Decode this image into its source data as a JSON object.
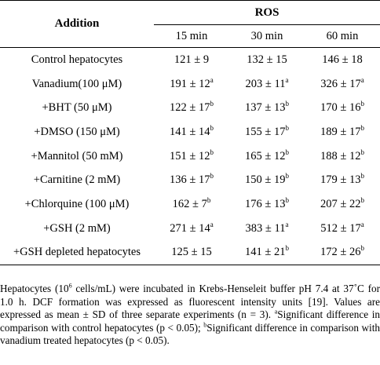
{
  "header": {
    "addition_label": "Addition",
    "ros_label": "ROS",
    "time_columns": [
      "15 min",
      "30 min",
      "60 min"
    ]
  },
  "rows": [
    {
      "addition": "Control hepatocytes",
      "values": [
        {
          "v": "121 ± 9",
          "s": ""
        },
        {
          "v": "132 ± 15",
          "s": ""
        },
        {
          "v": "146 ± 18",
          "s": ""
        }
      ]
    },
    {
      "addition": "Vanadium(100 μM)",
      "values": [
        {
          "v": "191 ± 12",
          "s": "a"
        },
        {
          "v": "203 ± 11",
          "s": "a"
        },
        {
          "v": "326 ± 17",
          "s": "a"
        }
      ]
    },
    {
      "addition": "+BHT (50 μM)",
      "values": [
        {
          "v": "122 ± 17",
          "s": "b"
        },
        {
          "v": "137 ± 13",
          "s": "b"
        },
        {
          "v": "170 ± 16",
          "s": "b"
        }
      ]
    },
    {
      "addition": "+DMSO (150 μM)",
      "values": [
        {
          "v": "141 ± 14",
          "s": "b"
        },
        {
          "v": "155 ± 17",
          "s": "b"
        },
        {
          "v": "189 ± 17",
          "s": "b"
        }
      ]
    },
    {
      "addition": "+Mannitol (50 mM)",
      "values": [
        {
          "v": "151 ± 12",
          "s": "b"
        },
        {
          "v": "165 ± 12",
          "s": "b"
        },
        {
          "v": "188 ± 12",
          "s": "b"
        }
      ]
    },
    {
      "addition": "+Carnitine (2 mM)",
      "values": [
        {
          "v": "136 ± 17",
          "s": "b"
        },
        {
          "v": "150 ± 19",
          "s": "b"
        },
        {
          "v": "179 ± 13",
          "s": "b"
        }
      ]
    },
    {
      "addition": "+Chlorquine (100 μM)",
      "values": [
        {
          "v": "162 ± 7",
          "s": "b"
        },
        {
          "v": "176 ± 13",
          "s": "b"
        },
        {
          "v": "207 ± 22",
          "s": "b"
        }
      ]
    },
    {
      "addition": "+GSH (2 mM)",
      "values": [
        {
          "v": "271 ± 14",
          "s": "a"
        },
        {
          "v": "383 ± 11",
          "s": "a"
        },
        {
          "v": "512 ± 17",
          "s": "a"
        }
      ]
    },
    {
      "addition": "+GSH depleted hepatocytes",
      "values": [
        {
          "v": "125 ± 15",
          "s": ""
        },
        {
          "v": "141 ± 21",
          "s": "b"
        },
        {
          "v": "172 ± 26",
          "s": "b"
        }
      ]
    }
  ],
  "footnote": {
    "line1_a": "Hepatocytes (10",
    "line1_sup": "6",
    "line1_b": " cells/mL) were incubated in Krebs-Henseleit buffer pH 7.4 at 37˚C for 1.0 h. DCF formation was expressed as fluorescent intensity units [19]. Values are expressed as mean ± SD of three separate experiments (n = 3). ",
    "sup_a": "a",
    "text_a": "Significant difference in comparison with control hepatocytes (p < 0.05); ",
    "sup_b": "b",
    "text_b": "Significant difference in comparison with vanadium treated hepatocytes (p < 0.05)."
  }
}
